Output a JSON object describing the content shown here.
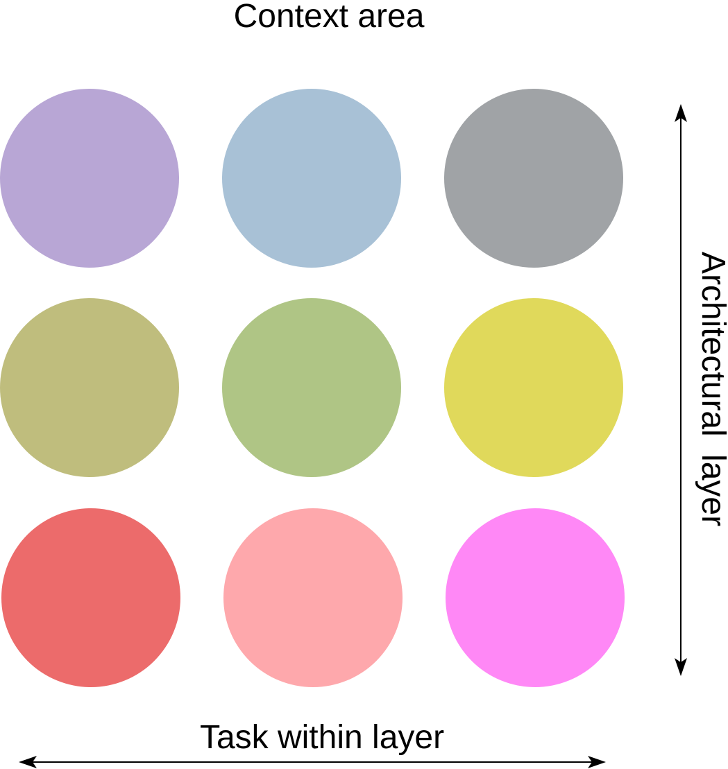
{
  "labels": {
    "top": "Context area",
    "bottom": "Task within layer",
    "right": "Architectural layer"
  },
  "circles": [
    {
      "row": 1,
      "col": 1,
      "color": "#b8a6d5"
    },
    {
      "row": 1,
      "col": 2,
      "color": "#a8c1d6"
    },
    {
      "row": 1,
      "col": 3,
      "color": "#a0a3a6"
    },
    {
      "row": 2,
      "col": 1,
      "color": "#bfbd7d"
    },
    {
      "row": 2,
      "col": 2,
      "color": "#afc585"
    },
    {
      "row": 2,
      "col": 3,
      "color": "#e0d95b"
    },
    {
      "row": 3,
      "col": 1,
      "color": "#ec6b6b"
    },
    {
      "row": 3,
      "col": 2,
      "color": "#fea8ac"
    },
    {
      "row": 3,
      "col": 3,
      "color": "#ff88f6"
    }
  ],
  "arrows": {
    "color": "#000000"
  }
}
